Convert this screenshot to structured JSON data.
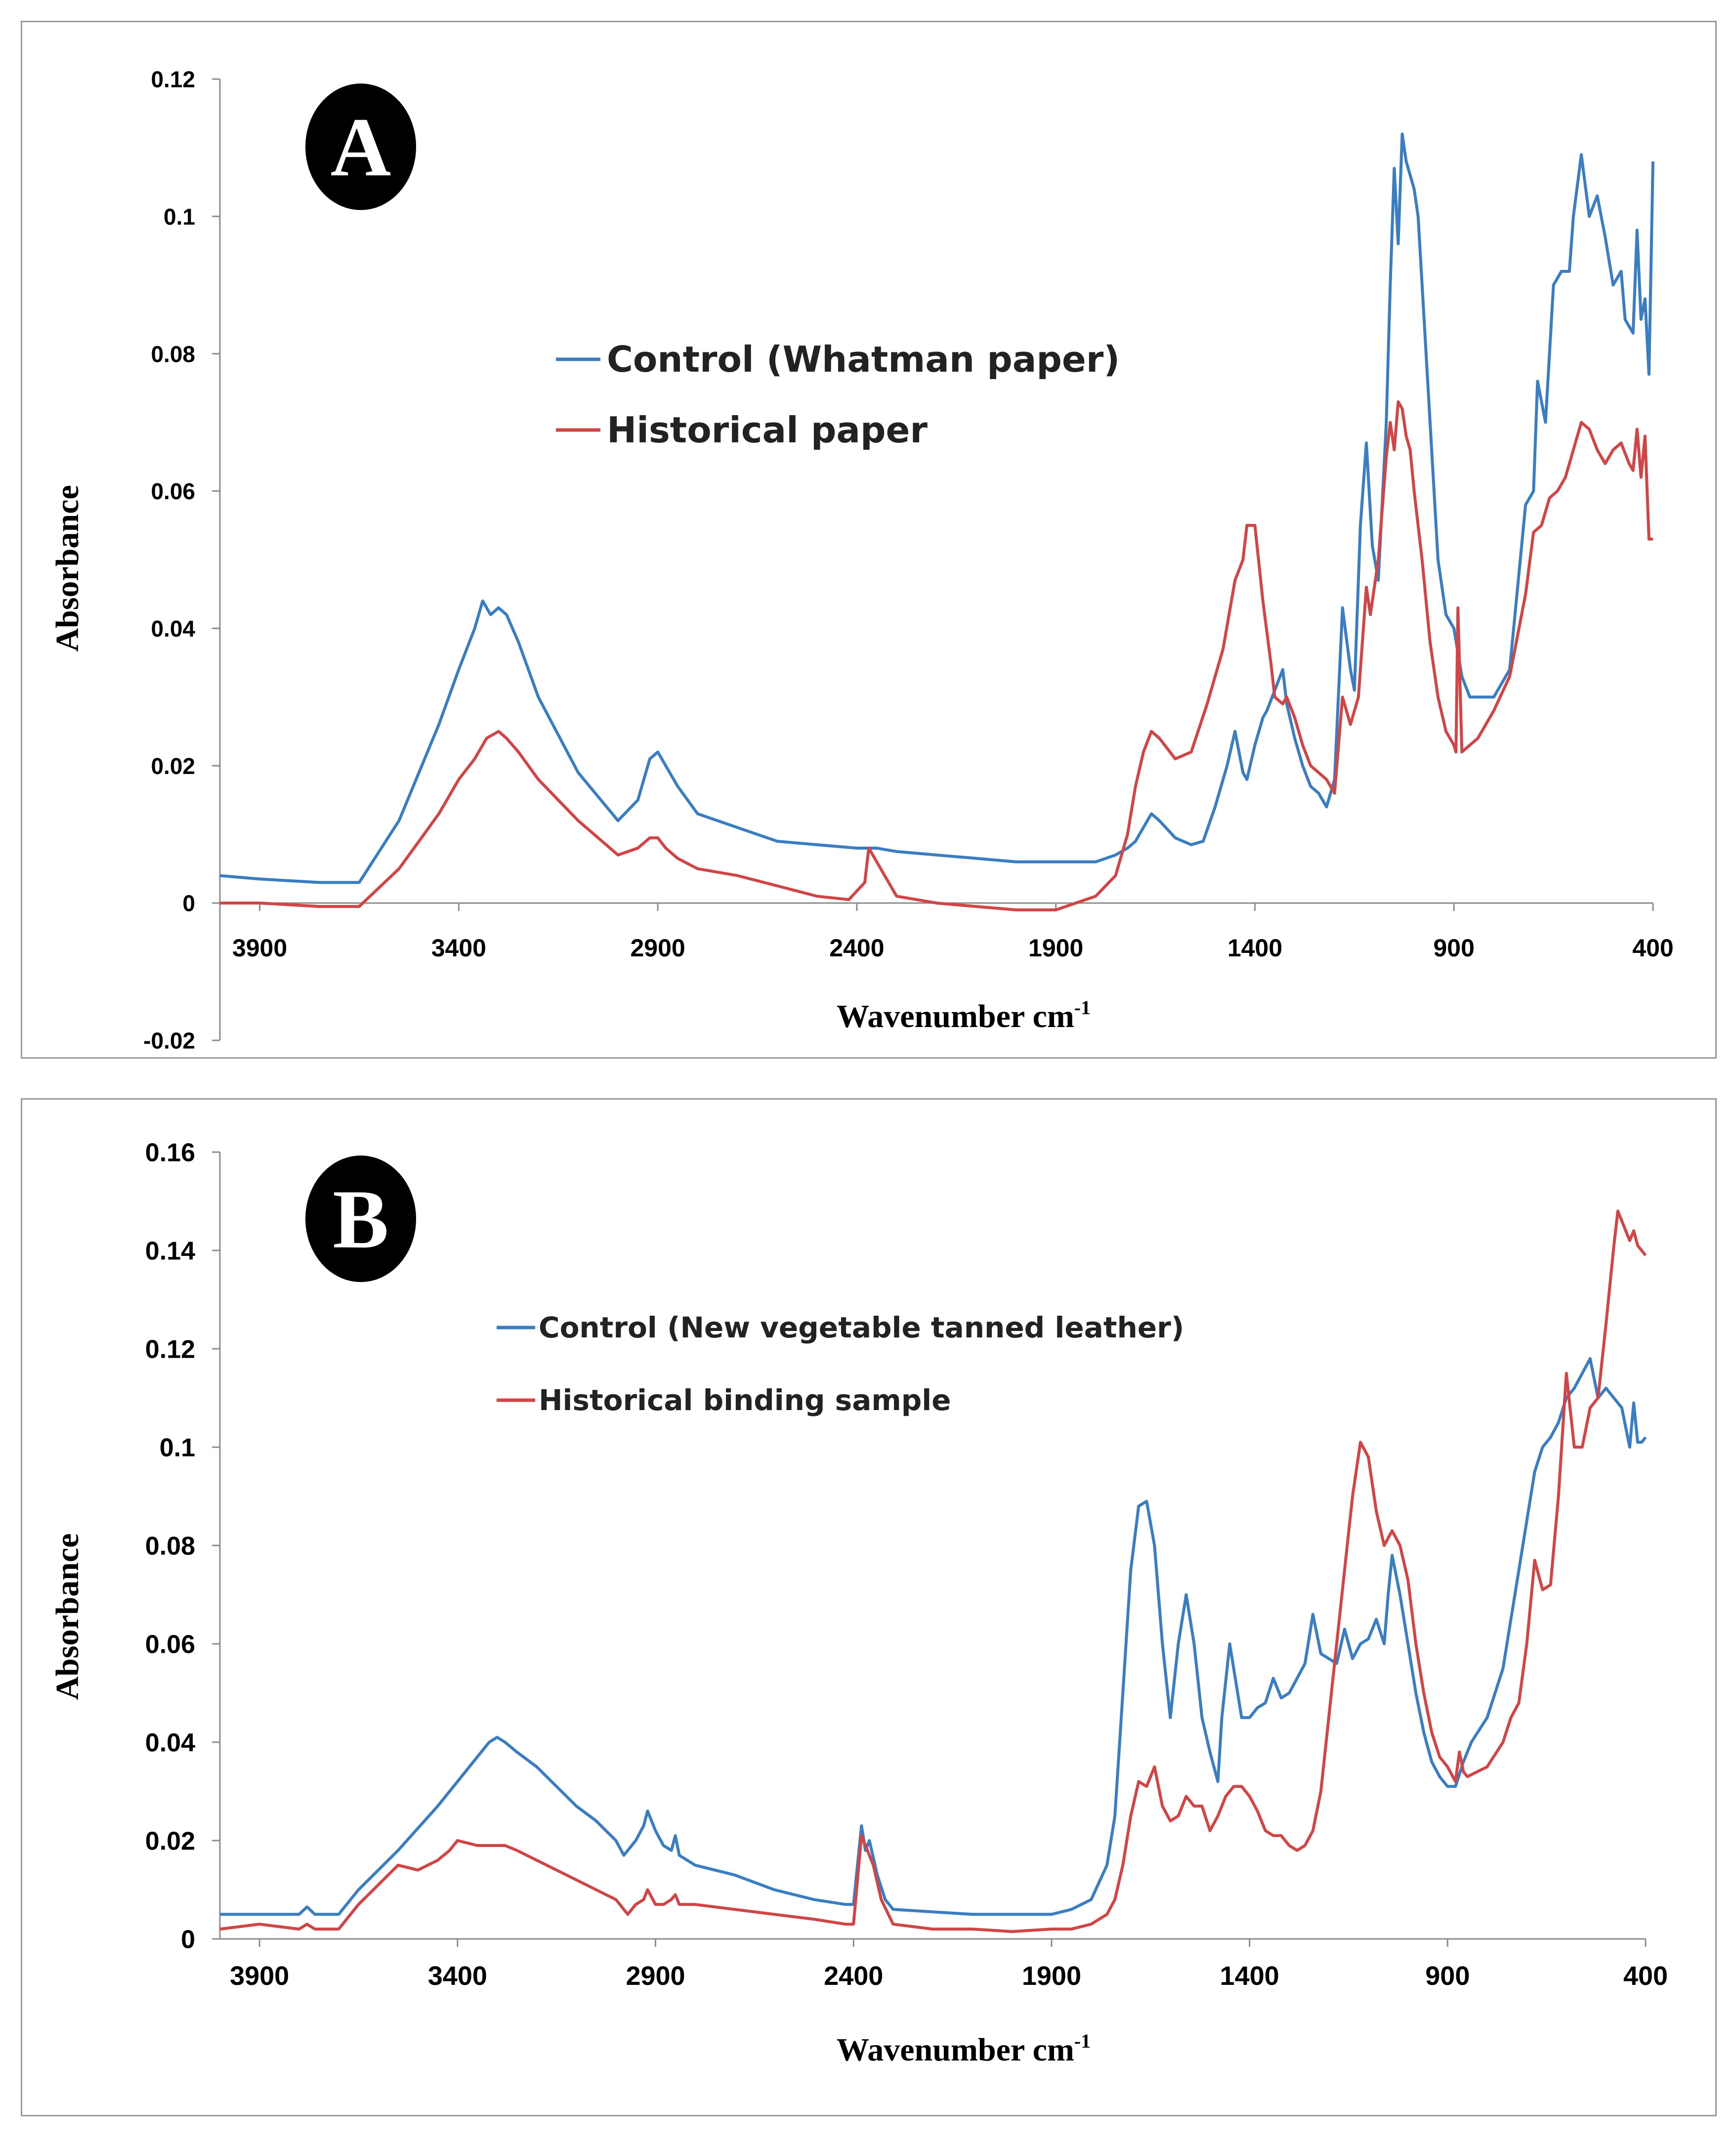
{
  "chart_data": [
    {
      "type": "line",
      "panel_label": "A",
      "xlabel": "Wavenumber cm",
      "xlabel_sup": "-1",
      "ylabel": "Absorbance",
      "xlim": [
        4000,
        400
      ],
      "ylim": [
        -0.02,
        0.12
      ],
      "x_ticks": [
        3900,
        3400,
        2900,
        2400,
        1900,
        1400,
        900,
        400
      ],
      "y_ticks": [
        -0.02,
        0,
        0.02,
        0.04,
        0.06,
        0.08,
        0.1,
        0.12
      ],
      "y_tick_labels": [
        "-0.02",
        "0",
        "0.02",
        "0.04",
        "0.06",
        "0.08",
        "0.1",
        "0.12"
      ],
      "legend_position": "center-left",
      "series": [
        {
          "name": "Control (Whatman paper)",
          "color": "#3a7dc1",
          "x": [
            4000,
            3900,
            3750,
            3650,
            3550,
            3450,
            3400,
            3360,
            3340,
            3320,
            3300,
            3280,
            3250,
            3200,
            3100,
            3000,
            2950,
            2920,
            2900,
            2880,
            2850,
            2800,
            2700,
            2600,
            2500,
            2400,
            2350,
            2300,
            2200,
            2100,
            2000,
            1900,
            1800,
            1750,
            1720,
            1700,
            1680,
            1660,
            1640,
            1600,
            1560,
            1530,
            1500,
            1470,
            1450,
            1430,
            1420,
            1400,
            1380,
            1370,
            1350,
            1330,
            1320,
            1300,
            1280,
            1260,
            1240,
            1220,
            1200,
            1180,
            1160,
            1150,
            1135,
            1120,
            1105,
            1090,
            1070,
            1060,
            1050,
            1040,
            1030,
            1020,
            1000,
            990,
            980,
            960,
            940,
            920,
            900,
            880,
            860,
            840,
            800,
            760,
            720,
            700,
            690,
            670,
            660,
            650,
            630,
            610,
            600,
            580,
            560,
            540,
            520,
            500,
            480,
            470,
            450,
            440,
            430,
            420,
            410,
            400
          ],
          "values": [
            0.004,
            0.0035,
            0.003,
            0.003,
            0.012,
            0.026,
            0.034,
            0.04,
            0.044,
            0.042,
            0.043,
            0.042,
            0.038,
            0.03,
            0.019,
            0.012,
            0.015,
            0.021,
            0.022,
            0.02,
            0.017,
            0.013,
            0.011,
            0.009,
            0.0085,
            0.008,
            0.008,
            0.0075,
            0.007,
            0.0065,
            0.006,
            0.006,
            0.006,
            0.007,
            0.008,
            0.009,
            0.011,
            0.013,
            0.012,
            0.0095,
            0.0085,
            0.009,
            0.014,
            0.02,
            0.025,
            0.019,
            0.018,
            0.023,
            0.027,
            0.028,
            0.031,
            0.034,
            0.029,
            0.024,
            0.02,
            0.017,
            0.016,
            0.014,
            0.018,
            0.043,
            0.034,
            0.031,
            0.055,
            0.067,
            0.052,
            0.047,
            0.07,
            0.09,
            0.107,
            0.096,
            0.112,
            0.108,
            0.104,
            0.1,
            0.09,
            0.07,
            0.05,
            0.042,
            0.04,
            0.033,
            0.03,
            0.03,
            0.03,
            0.034,
            0.058,
            0.06,
            0.076,
            0.07,
            0.08,
            0.09,
            0.092,
            0.092,
            0.1,
            0.109,
            0.1,
            0.103,
            0.097,
            0.09,
            0.092,
            0.085,
            0.083,
            0.098,
            0.085,
            0.088,
            0.077,
            0.108
          ]
        },
        {
          "name": "Historical paper",
          "color": "#d04545",
          "x": [
            4000,
            3900,
            3750,
            3650,
            3550,
            3450,
            3400,
            3360,
            3330,
            3300,
            3280,
            3250,
            3200,
            3100,
            3000,
            2950,
            2920,
            2900,
            2880,
            2850,
            2800,
            2700,
            2600,
            2500,
            2420,
            2380,
            2370,
            2350,
            2320,
            2300,
            2250,
            2200,
            2100,
            2000,
            1900,
            1800,
            1750,
            1720,
            1700,
            1680,
            1660,
            1640,
            1600,
            1560,
            1520,
            1480,
            1450,
            1430,
            1420,
            1400,
            1380,
            1360,
            1350,
            1330,
            1320,
            1300,
            1280,
            1260,
            1240,
            1220,
            1200,
            1180,
            1160,
            1140,
            1120,
            1110,
            1090,
            1070,
            1060,
            1050,
            1040,
            1030,
            1020,
            1010,
            1000,
            990,
            980,
            960,
            940,
            920,
            900,
            895,
            890,
            880,
            860,
            840,
            800,
            760,
            720,
            700,
            680,
            660,
            640,
            620,
            600,
            580,
            560,
            540,
            520,
            500,
            480,
            460,
            450,
            440,
            430,
            420,
            410,
            400
          ],
          "values": [
            0.0,
            0.0,
            -0.0005,
            -0.0005,
            0.005,
            0.013,
            0.018,
            0.021,
            0.024,
            0.025,
            0.024,
            0.022,
            0.018,
            0.012,
            0.007,
            0.008,
            0.0095,
            0.0095,
            0.008,
            0.0065,
            0.005,
            0.004,
            0.0025,
            0.001,
            0.0005,
            0.003,
            0.008,
            0.006,
            0.003,
            0.001,
            0.0005,
            0.0,
            -0.0005,
            -0.001,
            -0.001,
            0.001,
            0.004,
            0.01,
            0.017,
            0.022,
            0.025,
            0.024,
            0.021,
            0.022,
            0.029,
            0.037,
            0.047,
            0.05,
            0.055,
            0.055,
            0.044,
            0.035,
            0.03,
            0.029,
            0.03,
            0.027,
            0.023,
            0.02,
            0.019,
            0.018,
            0.016,
            0.03,
            0.026,
            0.03,
            0.046,
            0.042,
            0.05,
            0.065,
            0.07,
            0.066,
            0.073,
            0.072,
            0.068,
            0.066,
            0.06,
            0.055,
            0.05,
            0.038,
            0.03,
            0.025,
            0.023,
            0.022,
            0.043,
            0.022,
            0.023,
            0.024,
            0.028,
            0.033,
            0.045,
            0.054,
            0.055,
            0.059,
            0.06,
            0.062,
            0.066,
            0.07,
            0.069,
            0.066,
            0.064,
            0.066,
            0.067,
            0.064,
            0.063,
            0.069,
            0.062,
            0.068,
            0.053,
            0.053
          ]
        }
      ]
    },
    {
      "type": "line",
      "panel_label": "B",
      "xlabel": "Wavenumber cm",
      "xlabel_sup": "-1",
      "ylabel": "Absorbance",
      "xlim": [
        4000,
        400
      ],
      "ylim": [
        0,
        0.16
      ],
      "x_ticks": [
        3900,
        3400,
        2900,
        2400,
        1900,
        1400,
        900,
        400
      ],
      "y_ticks": [
        0,
        0.02,
        0.04,
        0.06,
        0.08,
        0.1,
        0.12,
        0.14,
        0.16
      ],
      "y_tick_labels": [
        "0",
        "0.02",
        "0.04",
        "0.06",
        "0.08",
        "0.1",
        "0.12",
        "0.14",
        "0.16"
      ],
      "legend_position": "upper-center",
      "series": [
        {
          "name": "Control (New vegetable tanned leather)",
          "color": "#3a7dc1",
          "x": [
            4000,
            3900,
            3800,
            3780,
            3760,
            3700,
            3650,
            3550,
            3450,
            3400,
            3350,
            3320,
            3300,
            3280,
            3250,
            3200,
            3150,
            3100,
            3050,
            3000,
            2980,
            2950,
            2930,
            2920,
            2900,
            2880,
            2860,
            2850,
            2840,
            2800,
            2700,
            2600,
            2500,
            2420,
            2400,
            2380,
            2370,
            2360,
            2340,
            2320,
            2300,
            2200,
            2100,
            2000,
            1900,
            1850,
            1800,
            1760,
            1740,
            1720,
            1700,
            1680,
            1660,
            1640,
            1620,
            1600,
            1580,
            1560,
            1540,
            1520,
            1500,
            1480,
            1470,
            1450,
            1420,
            1400,
            1380,
            1360,
            1340,
            1320,
            1300,
            1280,
            1260,
            1240,
            1220,
            1200,
            1180,
            1160,
            1140,
            1120,
            1100,
            1080,
            1060,
            1050,
            1040,
            1020,
            1000,
            980,
            960,
            940,
            920,
            900,
            880,
            860,
            840,
            800,
            760,
            740,
            720,
            700,
            680,
            660,
            640,
            620,
            600,
            580,
            560,
            540,
            520,
            500,
            480,
            460,
            440,
            430,
            420,
            410,
            400
          ],
          "values": [
            0.005,
            0.005,
            0.005,
            0.0065,
            0.005,
            0.005,
            0.01,
            0.018,
            0.027,
            0.032,
            0.037,
            0.04,
            0.041,
            0.04,
            0.038,
            0.035,
            0.031,
            0.027,
            0.024,
            0.02,
            0.017,
            0.02,
            0.023,
            0.026,
            0.022,
            0.019,
            0.018,
            0.021,
            0.017,
            0.015,
            0.013,
            0.01,
            0.008,
            0.007,
            0.007,
            0.023,
            0.018,
            0.02,
            0.013,
            0.008,
            0.006,
            0.0055,
            0.005,
            0.005,
            0.005,
            0.006,
            0.008,
            0.015,
            0.025,
            0.05,
            0.075,
            0.088,
            0.089,
            0.08,
            0.06,
            0.045,
            0.06,
            0.07,
            0.06,
            0.045,
            0.038,
            0.032,
            0.045,
            0.06,
            0.045,
            0.045,
            0.047,
            0.048,
            0.053,
            0.049,
            0.05,
            0.053,
            0.056,
            0.066,
            0.058,
            0.057,
            0.056,
            0.063,
            0.057,
            0.06,
            0.061,
            0.065,
            0.06,
            0.07,
            0.078,
            0.07,
            0.06,
            0.05,
            0.042,
            0.036,
            0.033,
            0.031,
            0.031,
            0.036,
            0.04,
            0.045,
            0.055,
            0.065,
            0.075,
            0.085,
            0.095,
            0.1,
            0.102,
            0.105,
            0.11,
            0.112,
            0.115,
            0.118,
            0.11,
            0.112,
            0.11,
            0.108,
            0.1,
            0.109,
            0.101,
            0.101,
            0.102
          ]
        },
        {
          "name": "Historical binding sample",
          "color": "#d04545",
          "x": [
            4000,
            3900,
            3800,
            3780,
            3760,
            3700,
            3650,
            3600,
            3550,
            3500,
            3450,
            3420,
            3400,
            3350,
            3300,
            3280,
            3250,
            3200,
            3150,
            3100,
            3050,
            3000,
            2970,
            2950,
            2930,
            2920,
            2900,
            2880,
            2860,
            2850,
            2840,
            2800,
            2700,
            2600,
            2500,
            2420,
            2400,
            2380,
            2370,
            2350,
            2330,
            2300,
            2200,
            2100,
            2000,
            1900,
            1850,
            1800,
            1760,
            1740,
            1720,
            1700,
            1680,
            1660,
            1640,
            1620,
            1600,
            1580,
            1560,
            1540,
            1520,
            1500,
            1480,
            1460,
            1440,
            1420,
            1400,
            1380,
            1360,
            1340,
            1320,
            1300,
            1280,
            1260,
            1240,
            1220,
            1200,
            1180,
            1160,
            1140,
            1120,
            1100,
            1080,
            1060,
            1040,
            1020,
            1000,
            980,
            960,
            940,
            920,
            900,
            880,
            870,
            860,
            850,
            800,
            760,
            740,
            720,
            700,
            680,
            660,
            640,
            620,
            600,
            580,
            560,
            540,
            520,
            500,
            480,
            470,
            460,
            440,
            430,
            420,
            410,
            400
          ],
          "values": [
            0.002,
            0.003,
            0.002,
            0.003,
            0.002,
            0.002,
            0.007,
            0.011,
            0.015,
            0.014,
            0.016,
            0.018,
            0.02,
            0.019,
            0.019,
            0.019,
            0.018,
            0.016,
            0.014,
            0.012,
            0.01,
            0.008,
            0.005,
            0.007,
            0.008,
            0.01,
            0.007,
            0.007,
            0.008,
            0.009,
            0.007,
            0.007,
            0.006,
            0.005,
            0.004,
            0.003,
            0.003,
            0.021,
            0.019,
            0.015,
            0.008,
            0.003,
            0.002,
            0.002,
            0.0015,
            0.002,
            0.002,
            0.003,
            0.005,
            0.008,
            0.015,
            0.025,
            0.032,
            0.031,
            0.035,
            0.027,
            0.024,
            0.025,
            0.029,
            0.027,
            0.027,
            0.022,
            0.025,
            0.029,
            0.031,
            0.031,
            0.029,
            0.026,
            0.022,
            0.021,
            0.021,
            0.019,
            0.018,
            0.019,
            0.022,
            0.03,
            0.045,
            0.06,
            0.075,
            0.09,
            0.101,
            0.098,
            0.087,
            0.08,
            0.083,
            0.08,
            0.073,
            0.06,
            0.05,
            0.042,
            0.037,
            0.035,
            0.032,
            0.038,
            0.034,
            0.033,
            0.035,
            0.04,
            0.045,
            0.048,
            0.06,
            0.077,
            0.071,
            0.072,
            0.09,
            0.115,
            0.1,
            0.1,
            0.108,
            0.11,
            0.125,
            0.141,
            0.148,
            0.146,
            0.142,
            0.144,
            0.141,
            0.14,
            0.139
          ]
        }
      ]
    }
  ]
}
